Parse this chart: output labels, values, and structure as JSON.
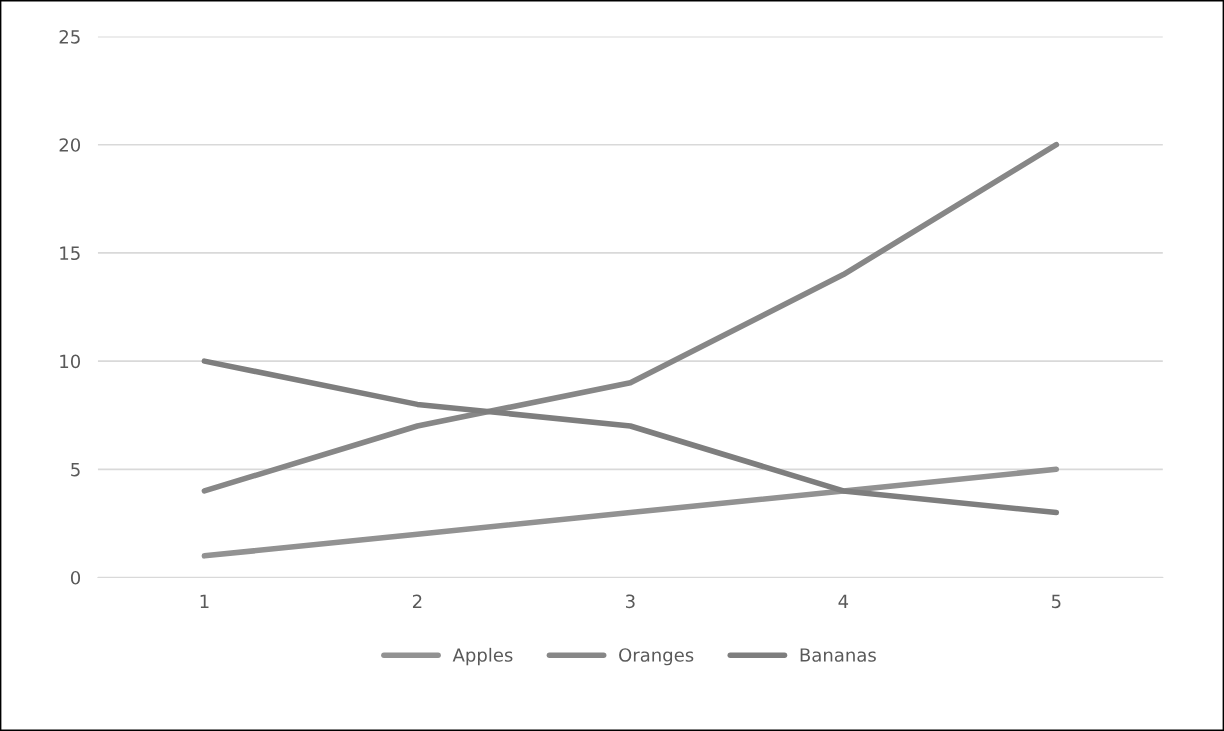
{
  "chart_data": {
    "type": "line",
    "x": [
      1,
      2,
      3,
      4,
      5
    ],
    "xlim": [
      0.5,
      5.5
    ],
    "xticks": [
      1,
      2,
      3,
      4,
      5
    ],
    "ylim": [
      0,
      25
    ],
    "yticks": [
      0,
      5,
      10,
      15,
      20,
      25
    ],
    "grid": "y",
    "legend": "bottom",
    "line_style": "solid",
    "series": [
      {
        "name": "Apples",
        "color": "#929292",
        "values": [
          1,
          2,
          3,
          4,
          5
        ]
      },
      {
        "name": "Oranges",
        "color": "#878787",
        "values": [
          4,
          7,
          9,
          14,
          20
        ]
      },
      {
        "name": "Bananas",
        "color": "#7e7e7e",
        "values": [
          10,
          8,
          7,
          4,
          3
        ]
      }
    ]
  }
}
